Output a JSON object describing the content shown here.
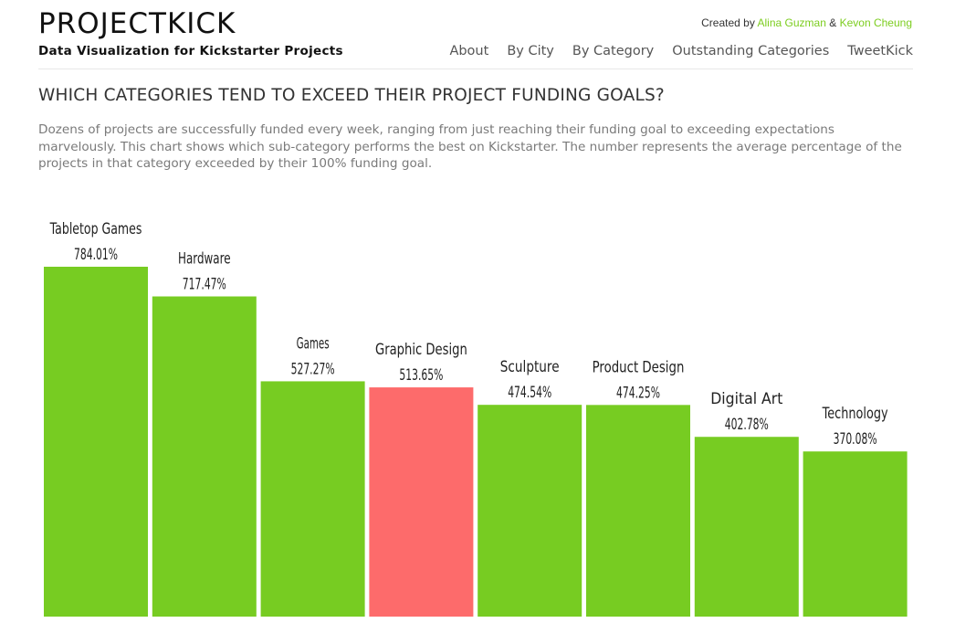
{
  "header": {
    "logo": "PROJECTKICK",
    "tagline": "Data Visualization for Kickstarter Projects",
    "credits": {
      "prefix": "Created by",
      "author1": "Alina Guzman",
      "separator": "&",
      "author2": "Kevon Cheung"
    },
    "nav": [
      "About",
      "By City",
      "By Category",
      "Outstanding Categories",
      "TweetKick"
    ]
  },
  "main": {
    "heading": "WHICH CATEGORIES TEND TO EXCEED THEIR PROJECT FUNDING GOALS?",
    "description": "Dozens of projects are successfully funded every week, ranging from just reaching their funding goal to exceeding expectations marvelously. This chart shows which sub-category performs the best on Kickstarter. The number represents the average percentage of the projects in that category exceeded by their 100% funding goal."
  },
  "colors": {
    "accent": "#7ccd1f",
    "bar_default": "#77cc22",
    "bar_highlight": "#fd6b6b"
  },
  "chart_data": {
    "type": "bar",
    "categories": [
      "Tabletop Games",
      "Hardware",
      "Games",
      "Graphic Design",
      "Sculpture",
      "Product Design",
      "Digital Art",
      "Technology"
    ],
    "values": [
      784.01,
      717.47,
      527.27,
      513.65,
      474.54,
      474.25,
      402.78,
      370.08
    ],
    "value_labels": [
      "784.01%",
      "717.47%",
      "527.27%",
      "513.65%",
      "474.54%",
      "474.25%",
      "402.78%",
      "370.08%"
    ],
    "highlighted": "Graphic Design"
  }
}
